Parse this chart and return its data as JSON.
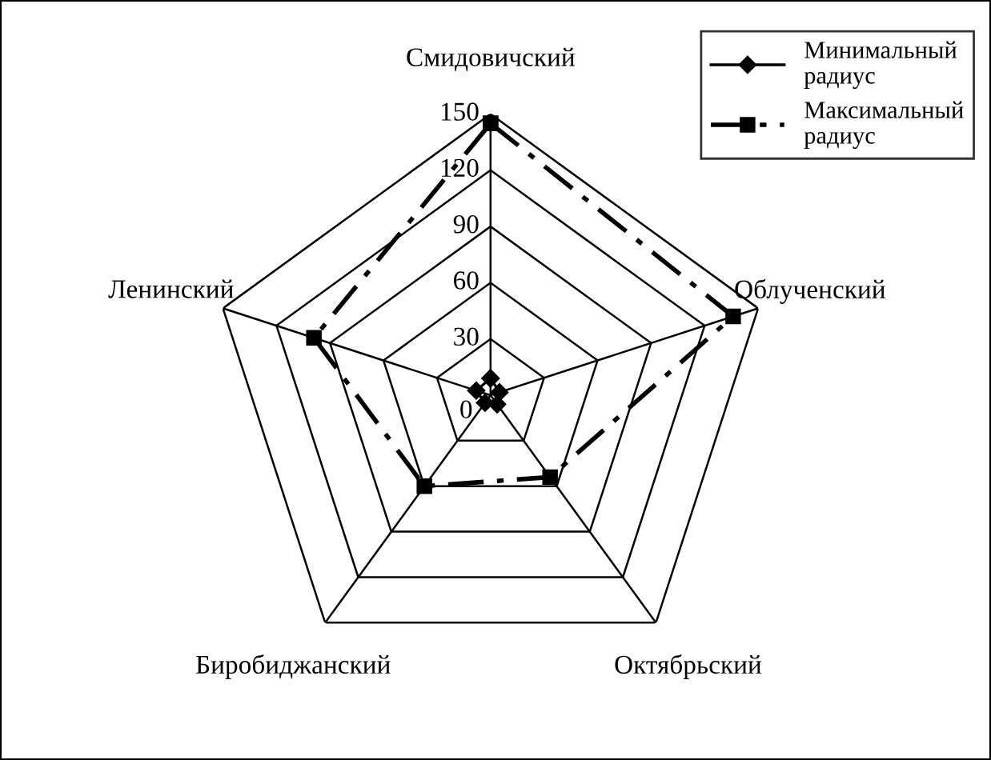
{
  "chart_data": {
    "type": "radar",
    "categories": [
      "Смидовичский",
      "Облученский",
      "Октябрьский",
      "Биробиджанский",
      "Ленинский"
    ],
    "series": [
      {
        "name": "Минимальный радиус",
        "color": "#000000",
        "values": [
          9,
          5,
          6,
          5,
          8
        ],
        "marker": "diamond",
        "line_style": "solid"
      },
      {
        "name": "Максимальный радиус",
        "color": "#000000",
        "values": [
          145,
          136,
          54,
          60,
          99
        ],
        "marker": "square",
        "line_style": "dashdot"
      }
    ],
    "ylim": [
      0,
      150
    ],
    "yticks": [
      0,
      30,
      60,
      90,
      120,
      150
    ],
    "grid": true,
    "legend": "top right"
  }
}
